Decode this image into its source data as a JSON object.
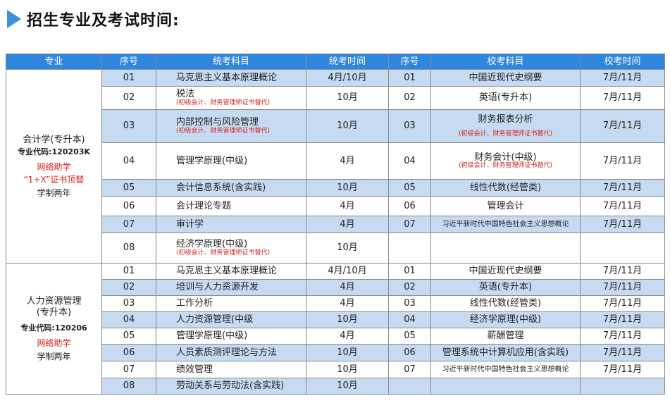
{
  "title": "招生专业及考试时间:",
  "headers": [
    "专业",
    "序号",
    "统考科目",
    "统考时间",
    "序号",
    "校考科目",
    "校考时间"
  ],
  "major1": {
    "name": "会计学(专升本)",
    "code": "专业代码:120203K",
    "note1": "网络助学",
    "note2": "“1+X”证书顶替",
    "duration": "学制两年",
    "rows": [
      {
        "no": "01",
        "subject": "马克思主义基本原理概论",
        "note": "",
        "time": "4月/10月",
        "no2": "01",
        "subject2": "中国近现代史纲要",
        "note2": "",
        "time2": "7月/11月"
      },
      {
        "no": "02",
        "subject": "税法",
        "note": "(初级会计、财务管理师证书替代)",
        "time": "10月",
        "no2": "02",
        "subject2": "英语(专升本)",
        "note2": "",
        "time2": "7月/11月"
      },
      {
        "no": "03",
        "subject": "内部控制与风险管理",
        "note": "(初级会计、财务管理师证书替代)",
        "time": "10月",
        "no2": "03",
        "subject2": "财务报表分析",
        "note2": "(初级会计、财务管理师证书替代)",
        "time2": "7月/11月"
      },
      {
        "no": "04",
        "subject": "管理学原理(中级)",
        "note": "",
        "time": "4月",
        "no2": "04",
        "subject2": "财务会计(中级)",
        "note2": "(初级会计、财务管理师证书替代)",
        "time2": "7月/11月"
      },
      {
        "no": "05",
        "subject": "会计信息系统(含实践)",
        "note": "",
        "time": "10月",
        "no2": "05",
        "subject2": "线性代数(经管类)",
        "note2": "",
        "time2": "7月/11月"
      },
      {
        "no": "06",
        "subject": "会计理论专题",
        "note": "",
        "time": "4月",
        "no2": "06",
        "subject2": "管理会计",
        "note2": "",
        "time2": "7月/11月"
      },
      {
        "no": "07",
        "subject": "审计学",
        "note": "",
        "time": "4月",
        "no2": "07",
        "subject2": "习近平新时代中国特色社会主义思想概论",
        "note2": "",
        "time2": "7月/11月"
      },
      {
        "no": "08",
        "subject": "经济学原理(中级)",
        "note": "(初级会计、财务管理师证书替代)",
        "time": "10月",
        "no2": "",
        "subject2": "",
        "note2": "",
        "time2": ""
      }
    ]
  },
  "major2": {
    "name": "人力资源管理",
    "name2": "(专升本)",
    "code": "专业代码:120206",
    "note1": "网络助学",
    "duration": "学制两年",
    "rows": [
      {
        "no": "01",
        "subject": "马克思主义基本原理概论",
        "time": "4月/10月",
        "no2": "01",
        "subject2": "中国近现代史纲要",
        "time2": "7月/11月"
      },
      {
        "no": "02",
        "subject": "培训与人力资源开发",
        "time": "4月",
        "no2": "02",
        "subject2": "英语(专升本)",
        "time2": "7月/11月"
      },
      {
        "no": "03",
        "subject": "工作分析",
        "time": "4月",
        "no2": "03",
        "subject2": "线性代数(经管类)",
        "time2": "7月/11月"
      },
      {
        "no": "04",
        "subject": "人力资源管理(中级",
        "time": "10月",
        "no2": "04",
        "subject2": "经济学原理(中级)",
        "time2": "7月/11月"
      },
      {
        "no": "05",
        "subject": "管理学原理(中级)",
        "time": "4月",
        "no2": "05",
        "subject2": "薪酬管理",
        "time2": "7月/11月"
      },
      {
        "no": "06",
        "subject": "人员素质测评理论与方法",
        "time": "10月",
        "no2": "06",
        "subject2": "管理系统中计算机应用(含实践)",
        "time2": "7月/11月"
      },
      {
        "no": "07",
        "subject": "绩效管理",
        "time": "10月",
        "no2": "07",
        "subject2": "习近平新时代中国特色社会主义思想概论",
        "time2": "7月/11月"
      },
      {
        "no": "08",
        "subject": "劳动关系与劳动法(含实践)",
        "time": "10月",
        "no2": "",
        "subject2": "",
        "time2": ""
      }
    ]
  }
}
